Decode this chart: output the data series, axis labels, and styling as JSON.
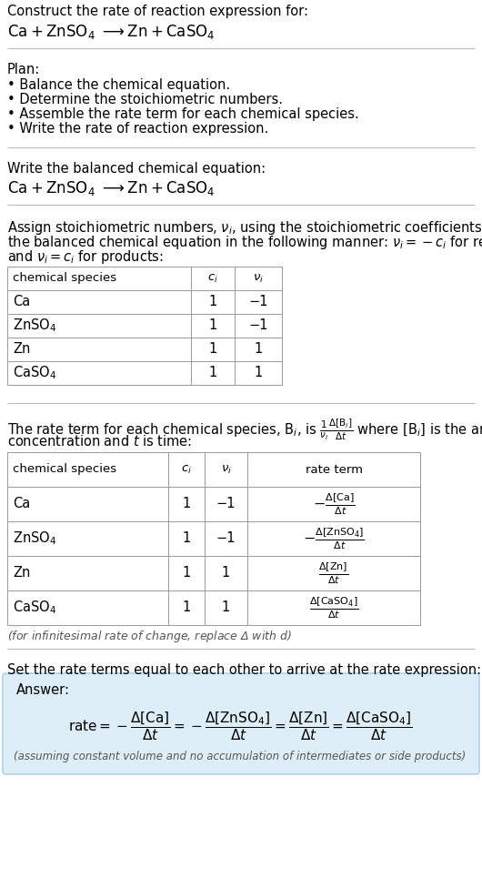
{
  "title_line1": "Construct the rate of reaction expression for:",
  "title_line2": "Ca + ZnSO$_4$  ⟶ Zn + CaSO$_4$",
  "plan_header": "Plan:",
  "plan_items": [
    "• Balance the chemical equation.",
    "• Determine the stoichiometric numbers.",
    "• Assemble the rate term for each chemical species.",
    "• Write the rate of reaction expression."
  ],
  "balanced_header": "Write the balanced chemical equation:",
  "balanced_eq": "Ca + ZnSO$_4$  ⟶ Zn + CaSO$_4$",
  "assign_text": [
    "Assign stoichiometric numbers, $\\nu_i$, using the stoichiometric coefficients, $c_i$, from",
    "the balanced chemical equation in the following manner: $\\nu_i = -c_i$ for reactants",
    "and $\\nu_i = c_i$ for products:"
  ],
  "table1_headers": [
    "chemical species",
    "$c_i$",
    "$\\nu_i$"
  ],
  "table1_rows": [
    [
      "Ca",
      "1",
      "−1"
    ],
    [
      "ZnSO$_4$",
      "1",
      "−1"
    ],
    [
      "Zn",
      "1",
      "1"
    ],
    [
      "CaSO$_4$",
      "1",
      "1"
    ]
  ],
  "rate_text": [
    "The rate term for each chemical species, B$_i$, is $\\frac{1}{\\nu_i}\\frac{\\Delta[\\mathrm{B}_i]}{\\Delta t}$ where [B$_i$] is the amount",
    "concentration and $t$ is time:"
  ],
  "table2_headers": [
    "chemical species",
    "$c_i$",
    "$\\nu_i$",
    "rate term"
  ],
  "table2_rows": [
    [
      "Ca",
      "1",
      "−1",
      "$-\\frac{\\Delta[\\mathrm{Ca}]}{\\Delta t}$"
    ],
    [
      "ZnSO$_4$",
      "1",
      "−1",
      "$-\\frac{\\Delta[\\mathrm{ZnSO_4}]}{\\Delta t}$"
    ],
    [
      "Zn",
      "1",
      "1",
      "$\\frac{\\Delta[\\mathrm{Zn}]}{\\Delta t}$"
    ],
    [
      "CaSO$_4$",
      "1",
      "1",
      "$\\frac{\\Delta[\\mathrm{CaSO_4}]}{\\Delta t}$"
    ]
  ],
  "infinitesimal_note": "(for infinitesimal rate of change, replace Δ with $d$)",
  "set_rate_text": "Set the rate terms equal to each other to arrive at the rate expression:",
  "answer_label": "Answer:",
  "answer_box_color": "#ddeef8",
  "answer_box_border": "#a8c8e8",
  "answer_eq": "$\\mathrm{rate} = -\\dfrac{\\Delta[\\mathrm{Ca}]}{\\Delta t} = -\\dfrac{\\Delta[\\mathrm{ZnSO_4}]}{\\Delta t} = \\dfrac{\\Delta[\\mathrm{Zn}]}{\\Delta t} = \\dfrac{\\Delta[\\mathrm{CaSO_4}]}{\\Delta t}$",
  "answer_note": "(assuming constant volume and no accumulation of intermediates or side products)",
  "bg_color": "#ffffff",
  "text_color": "#000000",
  "sep_color": "#bbbbbb",
  "table_color": "#999999",
  "fs": 10.5,
  "fs_small": 9.5,
  "fs_large": 12
}
